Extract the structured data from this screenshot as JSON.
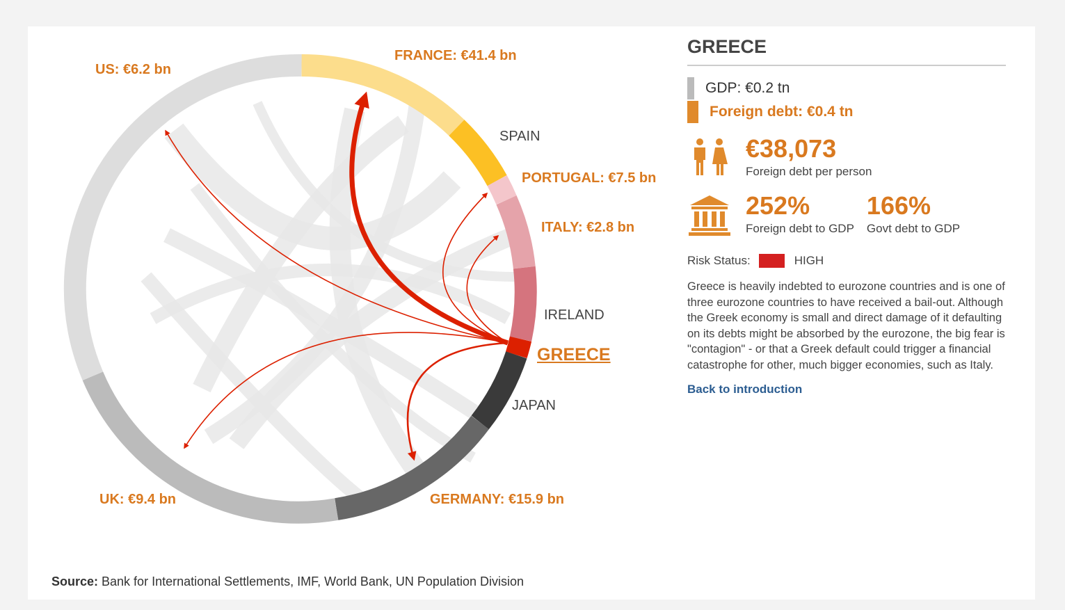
{
  "selected_country": "GREECE",
  "ring_segments": [
    {
      "name": "FRANCE",
      "value": "€41.4 bn",
      "color": "#fcdd8c",
      "highlight": true
    },
    {
      "name": "SPAIN",
      "value": "",
      "color": "#fcc024",
      "highlight": false
    },
    {
      "name": "PORTUGAL",
      "value": "€7.5 bn",
      "color": "#f4c6cb",
      "highlight": true
    },
    {
      "name": "ITALY",
      "value": "€2.8 bn",
      "color": "#e5a3aa",
      "highlight": true
    },
    {
      "name": "IRELAND",
      "value": "",
      "color": "#d5747e",
      "highlight": false
    },
    {
      "name": "GREECE",
      "value": "",
      "color": "#dc2000",
      "highlight": false,
      "selected": true
    },
    {
      "name": "JAPAN",
      "value": "",
      "color": "#3a3a3a",
      "highlight": false
    },
    {
      "name": "GERMANY",
      "value": "€15.9 bn",
      "color": "#676767",
      "highlight": true
    },
    {
      "name": "UK",
      "value": "€9.4 bn",
      "color": "#bbbbbb",
      "highlight": true
    },
    {
      "name": "US",
      "value": "€6.2 bn",
      "color": "#dddddd",
      "highlight": true
    }
  ],
  "labels": {
    "france": "FRANCE: €41.4 bn",
    "spain": "SPAIN",
    "portugal": "PORTUGAL: €7.5 bn",
    "italy": "ITALY: €2.8 bn",
    "ireland": "IRELAND",
    "greece": "GREECE",
    "japan": "JAPAN",
    "germany": "GERMANY: €15.9 bn",
    "uk": "UK: €9.4 bn",
    "us": "US: €6.2 bn"
  },
  "info": {
    "title": "GREECE",
    "gdp": "GDP: €0.2 tn",
    "foreign_debt": "Foreign debt: €0.4 tn",
    "per_person_value": "€38,073",
    "per_person_label": "Foreign debt per person",
    "foreign_to_gdp_value": "252%",
    "foreign_to_gdp_label": "Foreign debt to GDP",
    "govt_to_gdp_value": "166%",
    "govt_to_gdp_label": "Govt debt to GDP",
    "risk_label": "Risk Status:",
    "risk_value": "HIGH",
    "risk_color": "#d42020",
    "description": "Greece is heavily indebted to eurozone countries and is one of three eurozone countries to have received a bail-out. Although the Greek economy is small and direct damage of it defaulting on its debts might be absorbed by the eurozone, the big fear is \"contagion\" - or that a Greek default could trigger a financial catastrophe for other, much bigger economies, such as Italy.",
    "back_link": "Back to introduction"
  },
  "colors": {
    "accent": "#d9791f",
    "flow": "#dc2000",
    "gdp_swatch": "#bbbbbb",
    "debt_swatch": "#e08a2c"
  },
  "icons": {
    "people": "people-icon",
    "bank": "bank-icon"
  },
  "source": {
    "label": "Source:",
    "text": " Bank for International Settlements, IMF, World Bank, UN Population Division"
  }
}
